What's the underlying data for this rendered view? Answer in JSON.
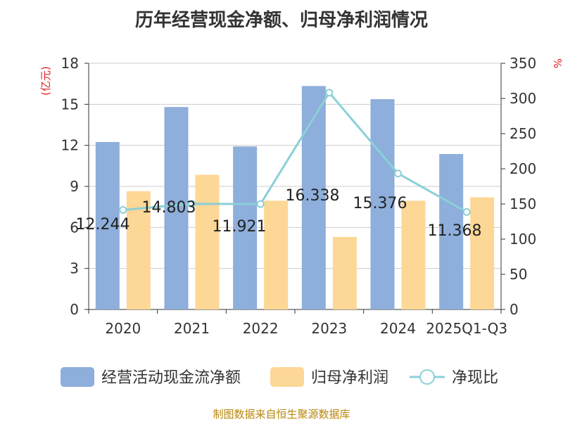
{
  "chart_data": {
    "type": "bar",
    "title": "历年经营现金净额、归母净利润情况",
    "categories": [
      "2020",
      "2021",
      "2022",
      "2023",
      "2024",
      "2025Q1-Q3"
    ],
    "series": [
      {
        "name": "经营活动现金流净额",
        "type": "bar",
        "axis": "left",
        "color": "#8eaedb",
        "values": [
          12.244,
          14.803,
          11.921,
          16.338,
          15.376,
          11.368
        ]
      },
      {
        "name": "归母净利润",
        "type": "bar",
        "axis": "left",
        "color": "#fdd795",
        "values": [
          8.65,
          9.85,
          7.95,
          5.3,
          7.95,
          8.2
        ]
      },
      {
        "name": "净现比",
        "type": "line",
        "axis": "right",
        "color": "#8bd0d8",
        "values": [
          141.5,
          150.3,
          149.9,
          308.3,
          193.4,
          138.6
        ]
      }
    ],
    "data_labels": [
      "12.244",
      "14.803",
      "11.921",
      "16.338",
      "15.376",
      "11.368"
    ],
    "y_left": {
      "label": "(亿元)",
      "ylim": [
        0,
        18
      ],
      "ticks": [
        "0",
        "3",
        "6",
        "9",
        "12",
        "15",
        "18"
      ],
      "tick_values": [
        0,
        3,
        6,
        9,
        12,
        15,
        18
      ]
    },
    "y_right": {
      "label": "%",
      "ylim": [
        0,
        350
      ],
      "ticks": [
        "0",
        "50",
        "100",
        "150",
        "200",
        "250",
        "300",
        "350"
      ],
      "tick_values": [
        0,
        50,
        100,
        150,
        200,
        250,
        300,
        350
      ]
    },
    "grid": true,
    "legend_position": "bottom"
  },
  "source": "制图数据来自恒生聚源数据库"
}
